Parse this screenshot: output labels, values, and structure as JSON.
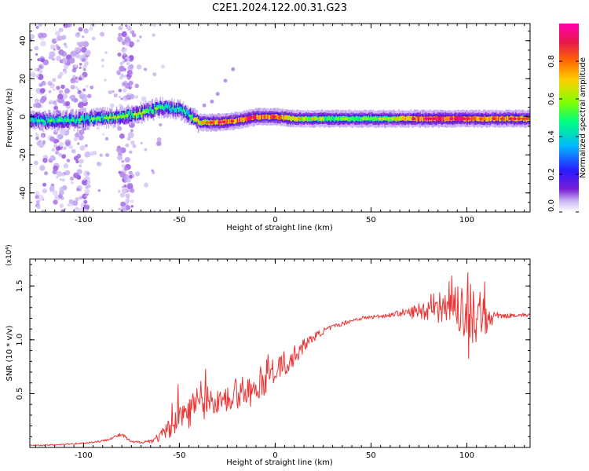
{
  "title": "C2E1.2024.122.00.31.G23",
  "colors": {
    "snr_line": "#ee3333",
    "background": "#ffffff",
    "axis": "#000000",
    "colormap": [
      "#ffffff",
      "#c9b3f2",
      "#7a1fd6",
      "#2a1aff",
      "#00b8ff",
      "#00ff7f",
      "#7fff00",
      "#ffd000",
      "#ff6a00",
      "#e8184a",
      "#ff00b0"
    ]
  },
  "chart_data": [
    {
      "type": "heatmap",
      "title": "",
      "xlabel": "Height of straight line (km)",
      "ylabel": "Frequency (Hz)",
      "xlim": [
        -128,
        133
      ],
      "ylim": [
        -50,
        49
      ],
      "x_ticks": [
        -100,
        -50,
        0,
        50,
        100
      ],
      "y_ticks": [
        -40,
        -20,
        0,
        20,
        40
      ],
      "colorbar": {
        "label": "Normalized spectral amplitude",
        "range": [
          0,
          1
        ],
        "ticks": [
          "0.0",
          "0.2",
          "0.4",
          "0.6",
          "0.8"
        ],
        "tick_values": [
          0.0,
          0.2,
          0.4,
          0.6,
          0.8
        ]
      },
      "ridge": {
        "x": [
          -128,
          -110,
          -95,
          -80,
          -70,
          -60,
          -50,
          -45,
          -40,
          -30,
          -20,
          -10,
          0,
          10,
          20,
          30,
          40,
          50,
          60,
          70,
          80,
          90,
          100,
          110,
          120,
          133
        ],
        "freq": [
          -2,
          -2,
          -1,
          0,
          2,
          5,
          4,
          1,
          -3,
          -3,
          -2,
          0,
          0,
          -1,
          -1,
          -1,
          -1,
          -1,
          -1,
          -1,
          -1,
          -1,
          -1,
          -1,
          -1,
          -1
        ],
        "amplitude": [
          0.45,
          0.5,
          0.5,
          0.55,
          0.6,
          0.5,
          0.55,
          0.5,
          0.7,
          0.85,
          0.9,
          0.9,
          0.85,
          0.7,
          0.6,
          0.55,
          0.55,
          0.55,
          0.6,
          0.85,
          0.9,
          0.9,
          0.85,
          0.8,
          0.85,
          0.8
        ]
      }
    },
    {
      "type": "line",
      "title": "",
      "xlabel": "Height of straight line (km)",
      "ylabel": "SNR (10 * v/v)",
      "y_multiplier": "(x10⁴)",
      "xlim": [
        -128,
        133
      ],
      "ylim": [
        0.0,
        1.75
      ],
      "x_ticks": [
        -100,
        -50,
        0,
        50,
        100
      ],
      "y_ticks": [
        0.5,
        1.0,
        1.5
      ],
      "y_tick_labels": [
        "0.5",
        "1.0",
        "1.5"
      ],
      "series": [
        {
          "x": [
            -128,
            -120,
            -110,
            -100,
            -90,
            -85,
            -80,
            -75,
            -70,
            -65,
            -60,
            -55,
            -50,
            -45,
            -40,
            -35,
            -30,
            -25,
            -20,
            -15,
            -10,
            -5,
            0,
            5,
            10,
            15,
            20,
            25,
            30,
            35,
            40,
            45,
            50,
            55,
            60,
            65,
            70,
            75,
            80,
            85,
            90,
            95,
            100,
            105,
            110,
            115,
            120,
            125,
            133
          ],
          "y": [
            0.02,
            0.02,
            0.03,
            0.04,
            0.06,
            0.09,
            0.12,
            0.05,
            0.05,
            0.06,
            0.1,
            0.18,
            0.28,
            0.35,
            0.4,
            0.42,
            0.42,
            0.45,
            0.48,
            0.5,
            0.55,
            0.63,
            0.7,
            0.78,
            0.85,
            0.95,
            1.02,
            1.08,
            1.12,
            1.15,
            1.18,
            1.2,
            1.21,
            1.22,
            1.23,
            1.25,
            1.25,
            1.27,
            1.28,
            1.28,
            1.3,
            1.28,
            1.24,
            1.22,
            1.2,
            1.22,
            1.22,
            1.23,
            1.23
          ],
          "noise": [
            0.005,
            0.005,
            0.006,
            0.008,
            0.01,
            0.012,
            0.02,
            0.01,
            0.012,
            0.02,
            0.05,
            0.1,
            0.15,
            0.17,
            0.18,
            0.16,
            0.12,
            0.12,
            0.12,
            0.12,
            0.13,
            0.14,
            0.13,
            0.12,
            0.1,
            0.06,
            0.04,
            0.03,
            0.02,
            0.02,
            0.02,
            0.02,
            0.02,
            0.02,
            0.02,
            0.03,
            0.05,
            0.08,
            0.1,
            0.12,
            0.15,
            0.22,
            0.25,
            0.26,
            0.2,
            0.04,
            0.02,
            0.02,
            0.02
          ]
        }
      ]
    }
  ]
}
